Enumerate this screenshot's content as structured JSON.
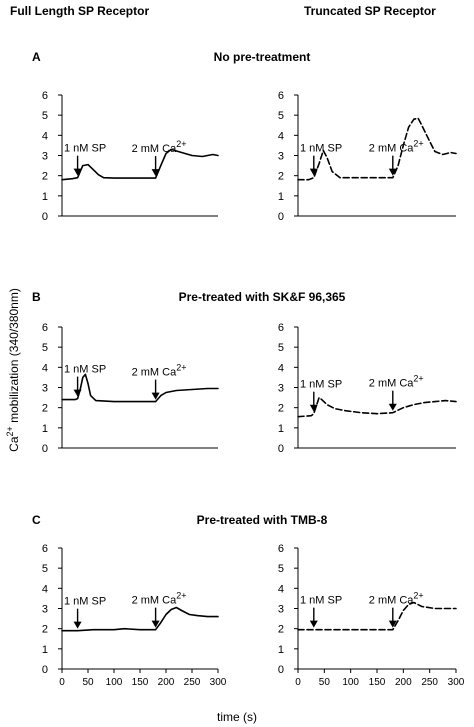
{
  "headers": {
    "left": "Full Length SP Receptor",
    "right": "Truncated SP Receptor"
  },
  "ylabel_main": "Ca",
  "ylabel_sup": "2+",
  "ylabel_rest": " mobilization (340/380nm)",
  "xlabel": "time   (s)",
  "panels": [
    {
      "letter": "A",
      "title": "No pre-treatment"
    },
    {
      "letter": "B",
      "title": "Pre-treated with SK&F 96,365"
    },
    {
      "letter": "C",
      "title": "Pre-treated with TMB-8"
    }
  ],
  "annotations": {
    "sp": "1 nM SP",
    "ca_main": "2 mM Ca",
    "ca_sup": "2+"
  },
  "chart_data": [
    {
      "type": "line",
      "panel": "A",
      "column": "Full Length SP Receptor",
      "style": "solid",
      "xlim": [
        0,
        300
      ],
      "ylim": [
        0,
        6
      ],
      "yticks": [
        0,
        1,
        2,
        3,
        4,
        5,
        6
      ],
      "xticks": [],
      "arrows": [
        {
          "x": 30,
          "label": "1 nM SP"
        },
        {
          "x": 180,
          "label": "2 mM Ca2+"
        }
      ],
      "points": [
        [
          0,
          1.8
        ],
        [
          20,
          1.85
        ],
        [
          30,
          1.9
        ],
        [
          35,
          2.2
        ],
        [
          40,
          2.5
        ],
        [
          50,
          2.55
        ],
        [
          60,
          2.3
        ],
        [
          70,
          2.05
        ],
        [
          80,
          1.9
        ],
        [
          100,
          1.88
        ],
        [
          150,
          1.88
        ],
        [
          180,
          1.88
        ],
        [
          190,
          2.5
        ],
        [
          200,
          3.1
        ],
        [
          210,
          3.3
        ],
        [
          230,
          3.15
        ],
        [
          250,
          3.0
        ],
        [
          270,
          2.95
        ],
        [
          290,
          3.05
        ],
        [
          300,
          3.0
        ]
      ]
    },
    {
      "type": "line",
      "panel": "A",
      "column": "Truncated SP Receptor",
      "style": "dashed",
      "xlim": [
        0,
        300
      ],
      "ylim": [
        0,
        6
      ],
      "yticks": [
        0,
        1,
        2,
        3,
        4,
        5,
        6
      ],
      "xticks": [],
      "arrows": [
        {
          "x": 30,
          "label": "1 nM SP"
        },
        {
          "x": 180,
          "label": "2 mM Ca2+"
        }
      ],
      "points": [
        [
          0,
          1.8
        ],
        [
          20,
          1.8
        ],
        [
          30,
          1.9
        ],
        [
          40,
          2.6
        ],
        [
          48,
          3.25
        ],
        [
          55,
          2.9
        ],
        [
          65,
          2.2
        ],
        [
          80,
          1.9
        ],
        [
          100,
          1.9
        ],
        [
          150,
          1.9
        ],
        [
          180,
          1.9
        ],
        [
          190,
          2.5
        ],
        [
          200,
          3.5
        ],
        [
          210,
          4.4
        ],
        [
          220,
          4.8
        ],
        [
          228,
          4.85
        ],
        [
          235,
          4.5
        ],
        [
          250,
          3.7
        ],
        [
          260,
          3.2
        ],
        [
          275,
          3.05
        ],
        [
          290,
          3.15
        ],
        [
          300,
          3.1
        ]
      ]
    },
    {
      "type": "line",
      "panel": "B",
      "column": "Full Length SP Receptor",
      "style": "solid",
      "xlim": [
        0,
        300
      ],
      "ylim": [
        0,
        6
      ],
      "yticks": [
        0,
        1,
        2,
        3,
        4,
        5,
        6
      ],
      "xticks": [],
      "arrows": [
        {
          "x": 30,
          "label": "1 nM SP"
        },
        {
          "x": 180,
          "label": "2 mM Ca2+"
        }
      ],
      "points": [
        [
          0,
          2.4
        ],
        [
          25,
          2.4
        ],
        [
          30,
          2.45
        ],
        [
          35,
          2.9
        ],
        [
          40,
          3.5
        ],
        [
          45,
          3.65
        ],
        [
          50,
          3.2
        ],
        [
          55,
          2.6
        ],
        [
          65,
          2.35
        ],
        [
          100,
          2.3
        ],
        [
          150,
          2.3
        ],
        [
          180,
          2.3
        ],
        [
          190,
          2.6
        ],
        [
          200,
          2.75
        ],
        [
          220,
          2.85
        ],
        [
          250,
          2.9
        ],
        [
          280,
          2.95
        ],
        [
          300,
          2.95
        ]
      ]
    },
    {
      "type": "line",
      "panel": "B",
      "column": "Truncated SP Receptor",
      "style": "dashed",
      "xlim": [
        0,
        300
      ],
      "ylim": [
        0,
        6
      ],
      "yticks": [
        0,
        1,
        2,
        3,
        4,
        5,
        6
      ],
      "xticks": [],
      "arrows": [
        {
          "x": 30,
          "label": "1 nM SP"
        },
        {
          "x": 180,
          "label": "2 mM Ca2+"
        }
      ],
      "points": [
        [
          0,
          1.55
        ],
        [
          25,
          1.6
        ],
        [
          30,
          1.7
        ],
        [
          35,
          2.1
        ],
        [
          40,
          2.5
        ],
        [
          45,
          2.4
        ],
        [
          55,
          2.15
        ],
        [
          70,
          1.95
        ],
        [
          90,
          1.85
        ],
        [
          120,
          1.75
        ],
        [
          150,
          1.7
        ],
        [
          180,
          1.75
        ],
        [
          200,
          2.0
        ],
        [
          220,
          2.15
        ],
        [
          240,
          2.25
        ],
        [
          260,
          2.3
        ],
        [
          280,
          2.35
        ],
        [
          300,
          2.3
        ]
      ]
    },
    {
      "type": "line",
      "panel": "C",
      "column": "Full Length SP Receptor",
      "style": "solid",
      "xlim": [
        0,
        300
      ],
      "ylim": [
        0,
        6
      ],
      "yticks": [
        0,
        1,
        2,
        3,
        4,
        5,
        6
      ],
      "xticks": [
        0,
        50,
        100,
        150,
        200,
        250,
        300
      ],
      "xticklabels": [
        "0",
        "50",
        "100",
        "150",
        "200",
        "250",
        "300"
      ],
      "arrows": [
        {
          "x": 30,
          "label": "1 nM SP"
        },
        {
          "x": 180,
          "label": "2 mM Ca2+"
        }
      ],
      "points": [
        [
          0,
          1.9
        ],
        [
          30,
          1.9
        ],
        [
          60,
          1.95
        ],
        [
          100,
          1.95
        ],
        [
          120,
          2.0
        ],
        [
          150,
          1.95
        ],
        [
          180,
          1.95
        ],
        [
          190,
          2.3
        ],
        [
          200,
          2.7
        ],
        [
          210,
          2.95
        ],
        [
          220,
          3.05
        ],
        [
          230,
          2.9
        ],
        [
          245,
          2.7
        ],
        [
          260,
          2.65
        ],
        [
          280,
          2.6
        ],
        [
          300,
          2.6
        ]
      ]
    },
    {
      "type": "line",
      "panel": "C",
      "column": "Truncated SP Receptor",
      "style": "dashed",
      "xlim": [
        0,
        300
      ],
      "ylim": [
        0,
        6
      ],
      "yticks": [
        0,
        1,
        2,
        3,
        4,
        5,
        6
      ],
      "xticks": [
        0,
        50,
        100,
        150,
        200,
        250,
        300
      ],
      "xticklabels": [
        "0",
        "50",
        "100",
        "150",
        "200",
        "250",
        "300"
      ],
      "arrows": [
        {
          "x": 30,
          "label": "1 nM SP"
        },
        {
          "x": 180,
          "label": "2 mM Ca2+"
        }
      ],
      "points": [
        [
          0,
          1.95
        ],
        [
          30,
          1.95
        ],
        [
          100,
          1.95
        ],
        [
          150,
          1.95
        ],
        [
          180,
          1.95
        ],
        [
          190,
          2.4
        ],
        [
          200,
          2.9
        ],
        [
          210,
          3.2
        ],
        [
          220,
          3.3
        ],
        [
          235,
          3.1
        ],
        [
          260,
          3.0
        ],
        [
          280,
          3.0
        ],
        [
          300,
          3.0
        ]
      ]
    }
  ]
}
